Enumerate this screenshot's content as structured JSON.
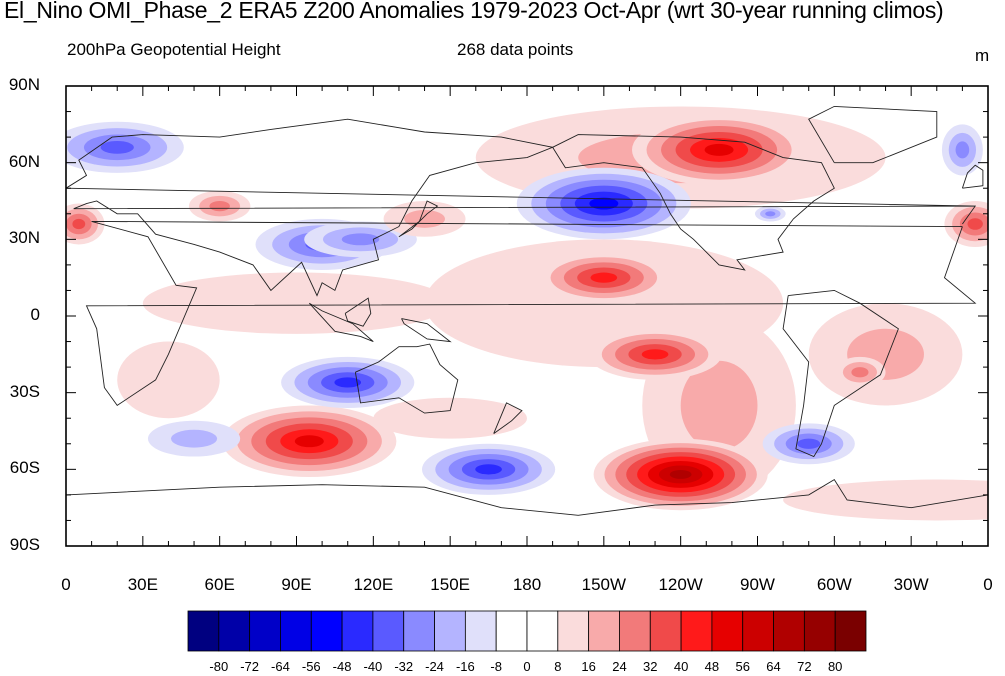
{
  "title": "El_Nino OMI_Phase_2 ERA5 Z200 Anomalies 1979-2023 Oct-Apr (wrt 30-year running climos)",
  "subtitle_left": "200hPa Geopotential Height",
  "subtitle_center": "268 data points",
  "units_label": "m",
  "map": {
    "projection": "cylindrical-equidistant",
    "lon_range": [
      0,
      360
    ],
    "lat_range": [
      -90,
      90
    ],
    "lat_ticks": [
      "90N",
      "60N",
      "30N",
      "0",
      "30S",
      "60S",
      "90S"
    ],
    "lon_ticks": [
      "0",
      "30E",
      "60E",
      "90E",
      "120E",
      "150E",
      "180",
      "150W",
      "120W",
      "90W",
      "60W",
      "30W",
      "0"
    ],
    "features": [
      {
        "name": "N Pacific low",
        "lon": 210,
        "lat": 44,
        "value": -48
      },
      {
        "name": "Canada high",
        "lon": 255,
        "lat": 65,
        "value": 48
      },
      {
        "name": "Subtropical N Pacific high",
        "lon": 210,
        "lat": 15,
        "value": 40
      },
      {
        "name": "Subtropical S Pacific high",
        "lon": 230,
        "lat": -15,
        "value": 40
      },
      {
        "name": "Amundsen Sea high",
        "lon": 240,
        "lat": -62,
        "value": 64
      },
      {
        "name": "S Indian Ocean high",
        "lon": 95,
        "lat": -49,
        "value": 48
      },
      {
        "name": "S Pacific low",
        "lon": 165,
        "lat": -60,
        "value": -40
      },
      {
        "name": "Australia low",
        "lon": 110,
        "lat": -26,
        "value": -40
      },
      {
        "name": "Tibet low",
        "lon": 100,
        "lat": 28,
        "value": -32
      },
      {
        "name": "N Atlantic low",
        "lon": 20,
        "lat": 66,
        "value": -32
      }
    ]
  },
  "colorbar": {
    "labels": [
      "-80",
      "-72",
      "-64",
      "-56",
      "-48",
      "-40",
      "-32",
      "-24",
      "-16",
      "-8",
      "0",
      "8",
      "16",
      "24",
      "32",
      "40",
      "48",
      "56",
      "64",
      "72",
      "80"
    ],
    "colors": [
      "#000080",
      "#0000a8",
      "#0000c8",
      "#0000e6",
      "#0000ff",
      "#2a2aff",
      "#5a5aff",
      "#8a8aff",
      "#b4b4ff",
      "#e0e0fa",
      "#ffffff",
      "#ffffff",
      "#fadcdc",
      "#f8aaaa",
      "#f27a7a",
      "#f04a4a",
      "#ff1a1a",
      "#e60000",
      "#cc0000",
      "#b00000",
      "#960000",
      "#7a0000"
    ]
  }
}
